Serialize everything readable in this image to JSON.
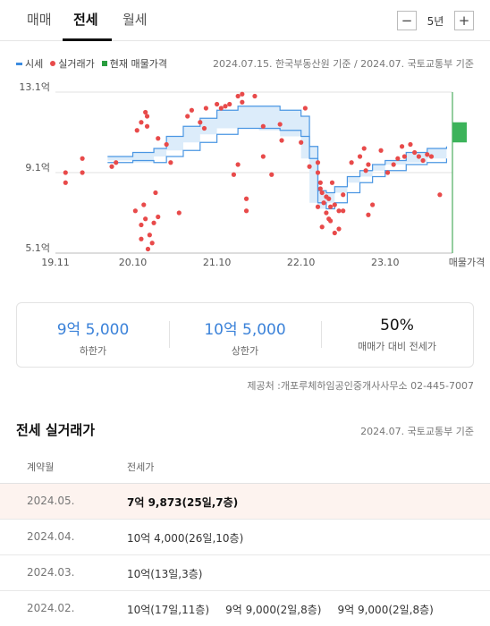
{
  "tabs": [
    {
      "label": "매매",
      "active": false
    },
    {
      "label": "전세",
      "active": true
    },
    {
      "label": "월세",
      "active": false
    }
  ],
  "period": {
    "value": "5년",
    "minus": "−",
    "plus": "+"
  },
  "legend": [
    {
      "label": "시세",
      "kind": "line",
      "color": "#3b8be0"
    },
    {
      "label": "실거래가",
      "kind": "dot",
      "color": "#e84a4a"
    },
    {
      "label": "현재 매물가격",
      "kind": "square",
      "color": "#2a9d3f"
    }
  ],
  "source_top": "2024.07.15. 한국부동산원 기준 / 2024.07. 국토교통부 기준",
  "chart_data": {
    "type": "scatter",
    "y_unit": "억",
    "yticks": [
      {
        "label": "13.1억",
        "value": 13.1
      },
      {
        "label": "9.1억",
        "value": 9.1
      },
      {
        "label": "5.1억",
        "value": 5.1
      }
    ],
    "ylim": [
      5.1,
      13.1
    ],
    "xticks": [
      {
        "label": "19.11",
        "value": 2019.83
      },
      {
        "label": "20.10",
        "value": 2020.75
      },
      {
        "label": "21.10",
        "value": 2021.75
      },
      {
        "label": "22.10",
        "value": 2022.75
      },
      {
        "label": "23.10",
        "value": 2023.75
      }
    ],
    "xlim": [
      2019.83,
      2024.55
    ],
    "x_end_label": "매물가격",
    "current_listing_range": [
      10.6,
      11.6
    ],
    "market_band": {
      "x": [
        2020.45,
        2020.75,
        2021.0,
        2021.15,
        2021.35,
        2021.55,
        2021.75,
        2022.0,
        2022.25,
        2022.5,
        2022.75,
        2022.85,
        2022.95,
        2023.05,
        2023.15,
        2023.3,
        2023.45,
        2023.6,
        2023.75,
        2024.0,
        2024.25,
        2024.48
      ],
      "upper": [
        9.9,
        10.1,
        10.3,
        10.9,
        11.4,
        11.8,
        12.2,
        12.4,
        12.4,
        12.2,
        11.9,
        10.4,
        8.2,
        8.1,
        8.4,
        8.9,
        9.2,
        9.5,
        9.7,
        10.1,
        10.3,
        10.4
      ],
      "lower": [
        9.6,
        9.7,
        9.6,
        9.9,
        10.2,
        10.6,
        11.0,
        11.3,
        11.3,
        11.2,
        10.9,
        9.8,
        7.6,
        7.3,
        7.6,
        8.1,
        8.6,
        8.9,
        9.2,
        9.5,
        9.6,
        9.8
      ]
    },
    "points": [
      [
        2019.95,
        9.1
      ],
      [
        2019.95,
        8.6
      ],
      [
        2020.15,
        9.1
      ],
      [
        2020.15,
        9.8
      ],
      [
        2020.5,
        9.4
      ],
      [
        2020.55,
        9.6
      ],
      [
        2020.78,
        7.2
      ],
      [
        2020.85,
        6.5
      ],
      [
        2020.88,
        7.5
      ],
      [
        2020.9,
        6.8
      ],
      [
        2020.95,
        6.0
      ],
      [
        2020.98,
        5.6
      ],
      [
        2020.85,
        5.8
      ],
      [
        2020.93,
        5.3
      ],
      [
        2021.0,
        6.6
      ],
      [
        2021.05,
        6.9
      ],
      [
        2021.02,
        8.1
      ],
      [
        2020.8,
        11.2
      ],
      [
        2020.85,
        11.6
      ],
      [
        2020.92,
        11.9
      ],
      [
        2020.9,
        12.1
      ],
      [
        2020.92,
        11.4
      ],
      [
        2021.05,
        10.8
      ],
      [
        2021.15,
        10.5
      ],
      [
        2021.2,
        9.6
      ],
      [
        2021.3,
        7.1
      ],
      [
        2021.4,
        11.9
      ],
      [
        2021.45,
        12.2
      ],
      [
        2021.55,
        11.6
      ],
      [
        2021.6,
        11.3
      ],
      [
        2021.62,
        12.3
      ],
      [
        2021.75,
        12.5
      ],
      [
        2021.8,
        12.3
      ],
      [
        2021.85,
        12.4
      ],
      [
        2021.9,
        12.5
      ],
      [
        2022.0,
        12.9
      ],
      [
        2022.05,
        13.0
      ],
      [
        2022.05,
        12.6
      ],
      [
        2022.2,
        12.9
      ],
      [
        2022.3,
        11.4
      ],
      [
        2021.95,
        9.0
      ],
      [
        2022.0,
        9.5
      ],
      [
        2022.1,
        7.2
      ],
      [
        2022.1,
        7.8
      ],
      [
        2022.3,
        9.9
      ],
      [
        2022.4,
        9.0
      ],
      [
        2022.5,
        11.5
      ],
      [
        2022.52,
        10.7
      ],
      [
        2022.8,
        12.3
      ],
      [
        2022.75,
        10.6
      ],
      [
        2022.85,
        9.4
      ],
      [
        2022.95,
        9.6
      ],
      [
        2022.98,
        8.6
      ],
      [
        2023.0,
        8.1
      ],
      [
        2023.02,
        7.6
      ],
      [
        2022.95,
        7.4
      ],
      [
        2023.05,
        7.1
      ],
      [
        2023.08,
        6.8
      ],
      [
        2023.1,
        6.7
      ],
      [
        2023.08,
        7.8
      ],
      [
        2023.15,
        7.5
      ],
      [
        2023.2,
        7.2
      ],
      [
        2023.25,
        8.0
      ],
      [
        2023.12,
        8.6
      ],
      [
        2022.95,
        9.1
      ],
      [
        2022.98,
        8.3
      ],
      [
        2023.05,
        7.9
      ],
      [
        2023.1,
        7.4
      ],
      [
        2023.15,
        6.1
      ],
      [
        2023.25,
        7.2
      ],
      [
        2023.0,
        6.4
      ],
      [
        2023.35,
        9.6
      ],
      [
        2023.45,
        9.9
      ],
      [
        2023.5,
        10.3
      ],
      [
        2023.52,
        9.2
      ],
      [
        2023.55,
        9.5
      ],
      [
        2023.7,
        10.2
      ],
      [
        2023.78,
        9.1
      ],
      [
        2023.85,
        9.5
      ],
      [
        2023.9,
        9.8
      ],
      [
        2023.95,
        10.4
      ],
      [
        2023.98,
        9.9
      ],
      [
        2024.05,
        10.5
      ],
      [
        2024.1,
        10.1
      ],
      [
        2024.15,
        9.9
      ],
      [
        2024.2,
        9.7
      ],
      [
        2024.25,
        10.0
      ],
      [
        2024.3,
        9.9
      ],
      [
        2023.6,
        7.5
      ],
      [
        2023.55,
        7.0
      ],
      [
        2024.4,
        8.0
      ],
      [
        2023.2,
        6.3
      ]
    ]
  },
  "summary": [
    {
      "value": "9억 5,000",
      "label": "하한가",
      "accent": true
    },
    {
      "value": "10억 5,000",
      "label": "상한가",
      "accent": true
    },
    {
      "value": "50%",
      "label": "매매가 대비 전세가",
      "accent": false
    }
  ],
  "provider": "제공처 :개포루체하임공인중개사사무소 02-445-7007",
  "transactions": {
    "title": "전세 실거래가",
    "source": "2024.07. 국토교통부 기준",
    "headers": {
      "month": "계약월",
      "price": "전세가"
    },
    "rows": [
      {
        "month": "2024.05.",
        "values": [
          "7억 9,873(25일,7층)"
        ],
        "highlight": true
      },
      {
        "month": "2024.04.",
        "values": [
          "10억 4,000(26일,10층)"
        ],
        "highlight": false
      },
      {
        "month": "2024.03.",
        "values": [
          "10억(13일,3층)"
        ],
        "highlight": false
      },
      {
        "month": "2024.02.",
        "values": [
          "10억(17일,11층)",
          "9억 9,000(2일,8층)",
          "9억 9,000(2일,8층)"
        ],
        "highlight": false
      }
    ]
  }
}
